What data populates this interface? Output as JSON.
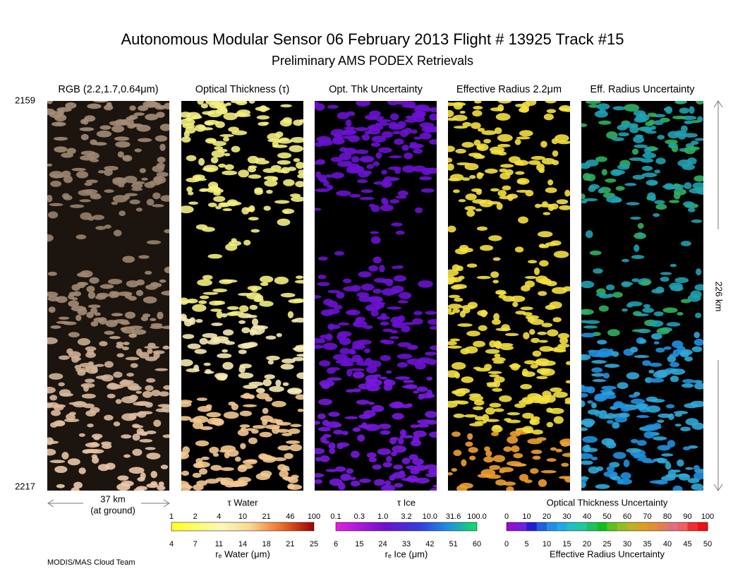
{
  "header": {
    "title": "Autonomous Modular Sensor  06 February 2013  Flight # 13925 Track #15",
    "subtitle": "Preliminary AMS PODEX Retrievals"
  },
  "panels": [
    {
      "title": "RGB (2.2,1.7,0.64μm)"
    },
    {
      "title": "Optical Thickness (τ)"
    },
    {
      "title": "Opt. Thk Uncertainty"
    },
    {
      "title": "Effective Radius 2.2μm"
    },
    {
      "title": "Eff. Radius Uncertainty"
    }
  ],
  "scan_labels": {
    "top": "2159",
    "bottom": "2217"
  },
  "scale": {
    "width": "37 km",
    "width_note": "(at ground)",
    "length": "226 km"
  },
  "colorbars": [
    {
      "top_title": "τ Water",
      "top_ticks": [
        "1",
        "2",
        "4",
        "10",
        "21",
        "46",
        "100"
      ],
      "bottom_ticks": [
        "4",
        "7",
        "11",
        "14",
        "18",
        "21",
        "25"
      ],
      "bottom_title": "rₑ Water (μm)"
    },
    {
      "top_title": "τ Ice",
      "top_ticks": [
        "0.1",
        "0.3",
        "1.0",
        "3.2",
        "10.0",
        "31.6",
        "100.0"
      ],
      "bottom_ticks": [
        "6",
        "15",
        "24",
        "33",
        "42",
        "51",
        "60"
      ],
      "bottom_title": "rₑ Ice (μm)"
    },
    {
      "top_title": "Optical Thickness Uncertainty",
      "top_ticks": [
        "0",
        "10",
        "20",
        "30",
        "40",
        "50",
        "60",
        "70",
        "80",
        "90",
        "100"
      ],
      "bottom_ticks": [
        "0",
        "5",
        "10",
        "15",
        "20",
        "25",
        "30",
        "35",
        "40",
        "45",
        "50"
      ],
      "bottom_title": "Effective Radius Uncertainty"
    }
  ],
  "footer": {
    "credit": "MODIS/MAS Cloud Team"
  }
}
